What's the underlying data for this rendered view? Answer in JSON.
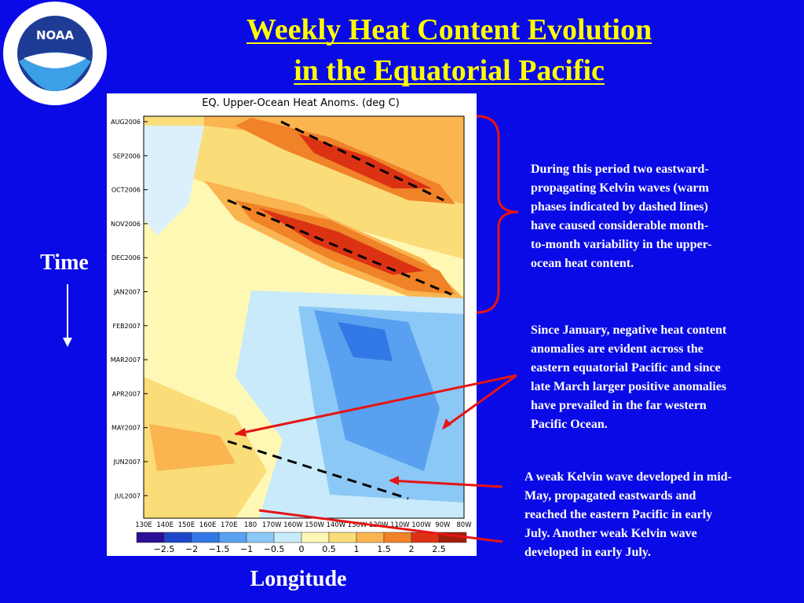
{
  "header": {
    "title_lines": [
      "Weekly Heat Content Evolution",
      "in the Equatorial Pacific"
    ],
    "logo_text": "NOAA"
  },
  "figure": {
    "title": "EQ. Upper-Ocean Heat Anoms. (deg C)",
    "time_labels": [
      "AUG2006",
      "SEP2006",
      "OCT2006",
      "NOV2006",
      "DEC2006",
      "JAN2007",
      "FEB2007",
      "MAR2007",
      "APR2007",
      "MAY2007",
      "JUN2007",
      "JUL2007"
    ],
    "longitude_labels": [
      "130E",
      "140E",
      "150E",
      "160E",
      "170E",
      "180",
      "170W",
      "160W",
      "150W",
      "140W",
      "130W",
      "120W",
      "110W",
      "100W",
      "90W",
      "80W"
    ],
    "colorbar_labels": [
      "−2.5",
      "−2",
      "−1.5",
      "−1",
      "−0.5",
      "0",
      "0.5",
      "1",
      "1.5",
      "2",
      "2.5"
    ]
  },
  "axis_titles": {
    "y": "Time",
    "x": "Longitude"
  },
  "annotations": [
    [
      "During this period two eastward-",
      "propagating Kelvin waves (warm",
      "phases indicated by dashed lines)",
      "have caused considerable month-",
      "to-month variability in the upper-",
      "ocean heat content."
    ],
    [
      "Since January, negative heat content",
      "anomalies are evident across the",
      "eastern equatorial Pacific and since",
      "late March larger positive anomalies",
      "have prevailed in the far western",
      "Pacific Ocean."
    ],
    [
      "A weak Kelvin wave developed in mid-",
      "May, propagated eastwards and",
      "reached the eastern Pacific in early",
      "July.  Another weak Kelvin wave",
      "developed in early July."
    ]
  ]
}
